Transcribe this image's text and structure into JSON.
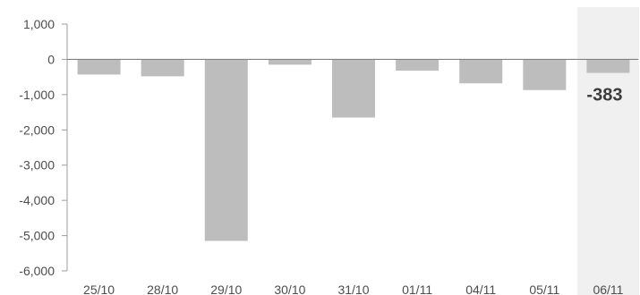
{
  "chart_data": {
    "type": "bar",
    "title": "",
    "xlabel": "",
    "ylabel": "",
    "categories": [
      "25/10",
      "28/10",
      "29/10",
      "30/10",
      "31/10",
      "01/11",
      "04/11",
      "05/11",
      "06/11"
    ],
    "values": [
      -430,
      -480,
      -5150,
      -150,
      -1650,
      -320,
      -680,
      -870,
      -383
    ],
    "ylim": [
      -6000,
      1000
    ],
    "yticks": [
      1000,
      0,
      -1000,
      -2000,
      -3000,
      -4000,
      -5000,
      -6000
    ],
    "ytick_labels": [
      "1,000",
      "0",
      "-1,000",
      "-2,000",
      "-3,000",
      "-4,000",
      "-5,000",
      "-6,000"
    ],
    "grid": false,
    "highlight": {
      "category": "06/11",
      "value_label": "-383"
    },
    "colors": {
      "bar": "#bdbdbd",
      "highlight_band": "#f0f0f0",
      "axis": "#9e9e9e",
      "zero_line": "#808080",
      "text": "#4d4d4d",
      "value_label": "#3c3c3c"
    }
  }
}
